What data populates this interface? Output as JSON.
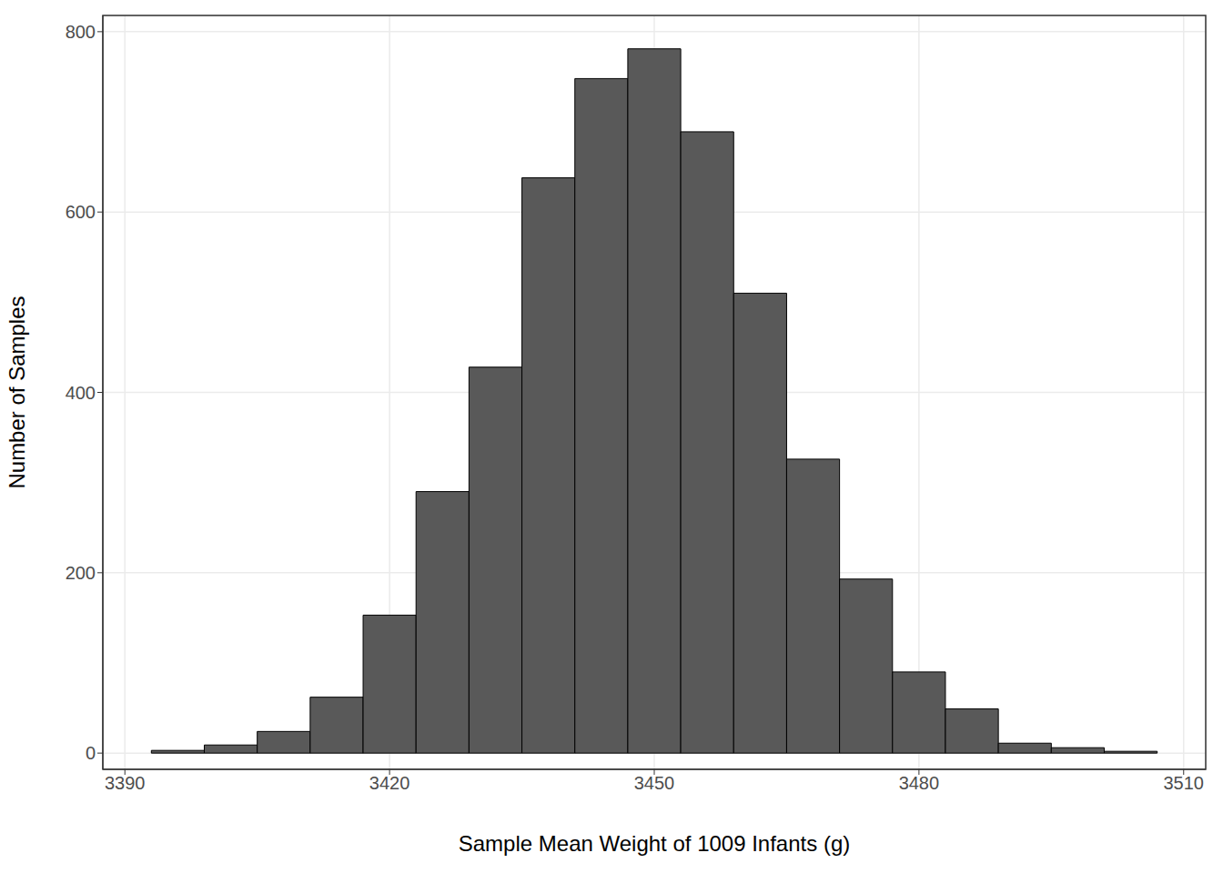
{
  "chart_data": {
    "type": "histogram",
    "x_label": "Sample Mean Weight of 1009 Infants (g)",
    "y_label": "Number of Samples",
    "bins": [
      3393,
      3399,
      3405,
      3411,
      3417,
      3423,
      3429,
      3435,
      3441,
      3447,
      3453,
      3459,
      3465,
      3471,
      3477,
      3483,
      3489,
      3495,
      3501,
      3507
    ],
    "counts": [
      3,
      9,
      24,
      62,
      153,
      290,
      428,
      638,
      748,
      781,
      689,
      510,
      326,
      193,
      90,
      49,
      11,
      6,
      2
    ],
    "color": "#595959",
    "xlim": [
      3387.5,
      3512.5
    ],
    "ylim": [
      -18,
      818
    ],
    "xticks": [
      3390,
      3420,
      3450,
      3480,
      3510
    ],
    "yticks": [
      0,
      200,
      400,
      600,
      800
    ],
    "grid": true
  }
}
